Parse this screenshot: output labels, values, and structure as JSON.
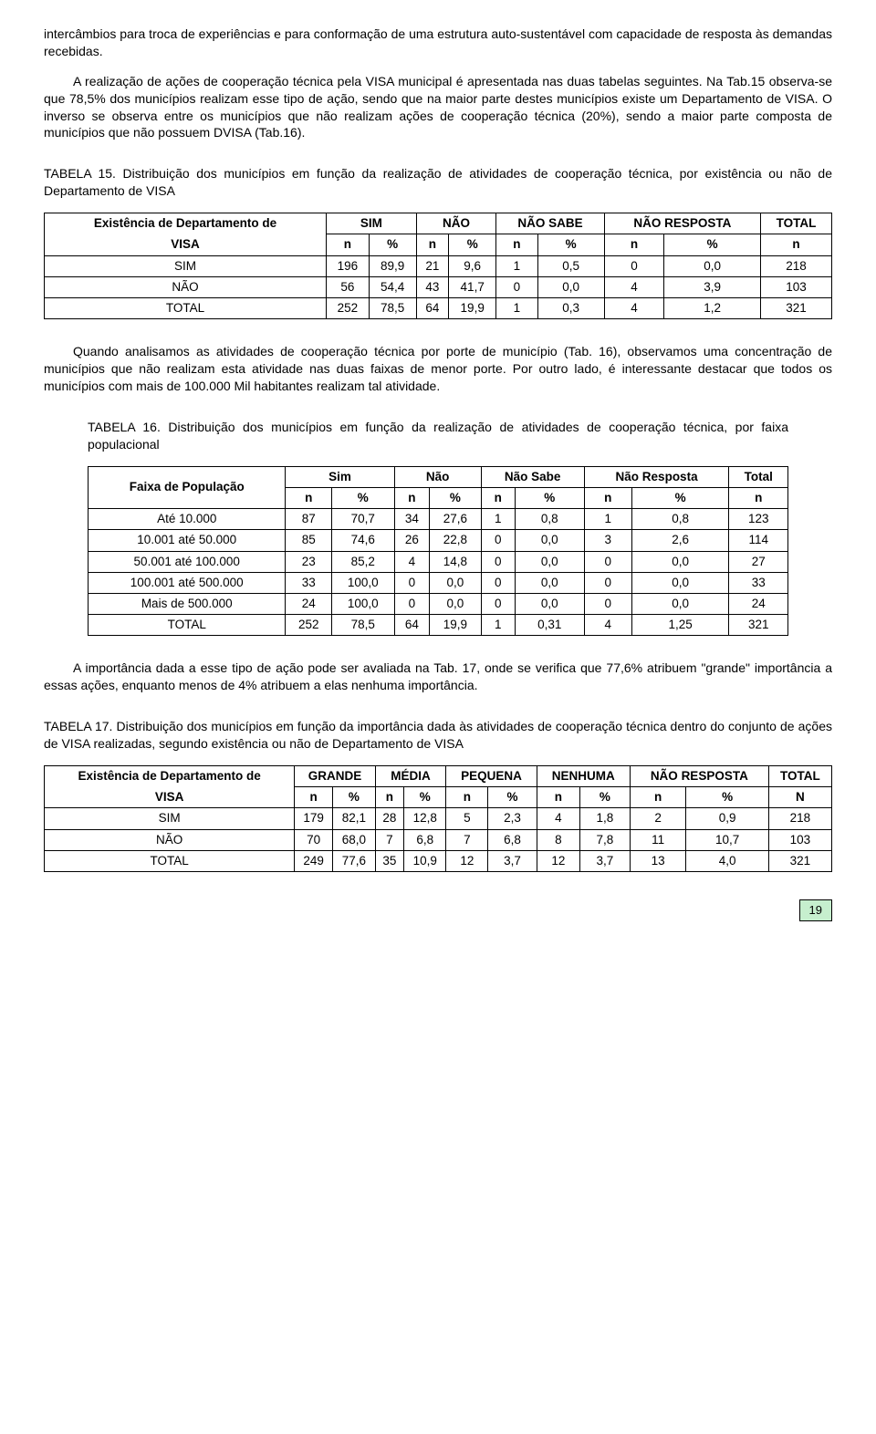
{
  "para1": "intercâmbios para troca de experiências e para conformação de uma estrutura auto-sustentável com capacidade de resposta às demandas recebidas.",
  "para2": "A realização de ações de cooperação técnica pela VISA municipal é apresentada nas duas tabelas seguintes. Na Tab.15 observa-se que 78,5% dos municípios realizam esse tipo de ação, sendo que na maior parte destes municípios existe um Departamento de VISA. O inverso se observa entre os municípios que não realizam ações de cooperação técnica (20%), sendo a maior parte composta de municípios que não possuem DVISA (Tab.16).",
  "tab15": {
    "title": "TABELA 15. Distribuição dos municípios em função da realização de atividades de cooperação técnica, por existência ou não de Departamento de VISA",
    "corner1": "Existência de Departamento de",
    "corner2": "VISA",
    "heads": [
      "SIM",
      "NÃO",
      "NÃO SABE",
      "NÃO RESPOSTA",
      "TOTAL"
    ],
    "sub": [
      "n",
      "%",
      "n",
      "%",
      "n",
      "%",
      "n",
      "%",
      "n"
    ],
    "rows": [
      {
        "label": "SIM",
        "c": [
          "196",
          "89,9",
          "21",
          "9,6",
          "1",
          "0,5",
          "0",
          "0,0",
          "218"
        ]
      },
      {
        "label": "NÃO",
        "c": [
          "56",
          "54,4",
          "43",
          "41,7",
          "0",
          "0,0",
          "4",
          "3,9",
          "103"
        ]
      },
      {
        "label": "TOTAL",
        "c": [
          "252",
          "78,5",
          "64",
          "19,9",
          "1",
          "0,3",
          "4",
          "1,2",
          "321"
        ]
      }
    ]
  },
  "para3": "Quando analisamos as atividades de cooperação técnica por porte de município (Tab. 16), observamos uma concentração de municípios que não realizam esta atividade nas duas faixas de menor porte. Por outro lado, é interessante destacar que todos os municípios com mais de 100.000 Mil habitantes realizam tal atividade.",
  "tab16": {
    "title": "TABELA 16. Distribuição dos municípios em função da realização de atividades de cooperação técnica, por faixa populacional",
    "corner": "Faixa de População",
    "heads": [
      "Sim",
      "Não",
      "Não Sabe",
      "Não Resposta",
      "Total"
    ],
    "sub": [
      "n",
      "%",
      "n",
      "%",
      "n",
      "%",
      "n",
      "%",
      "n"
    ],
    "rows": [
      {
        "label": "Até 10.000",
        "c": [
          "87",
          "70,7",
          "34",
          "27,6",
          "1",
          "0,8",
          "1",
          "0,8",
          "123"
        ]
      },
      {
        "label": "10.001 até 50.000",
        "c": [
          "85",
          "74,6",
          "26",
          "22,8",
          "0",
          "0,0",
          "3",
          "2,6",
          "114"
        ]
      },
      {
        "label": "50.001 até 100.000",
        "c": [
          "23",
          "85,2",
          "4",
          "14,8",
          "0",
          "0,0",
          "0",
          "0,0",
          "27"
        ]
      },
      {
        "label": "100.001 até 500.000",
        "c": [
          "33",
          "100,0",
          "0",
          "0,0",
          "0",
          "0,0",
          "0",
          "0,0",
          "33"
        ]
      },
      {
        "label": "Mais de 500.000",
        "c": [
          "24",
          "100,0",
          "0",
          "0,0",
          "0",
          "0,0",
          "0",
          "0,0",
          "24"
        ]
      },
      {
        "label": "TOTAL",
        "c": [
          "252",
          "78,5",
          "64",
          "19,9",
          "1",
          "0,31",
          "4",
          "1,25",
          "321"
        ]
      }
    ]
  },
  "para4": "A importância dada a esse tipo de ação pode ser avaliada na Tab. 17, onde se verifica que 77,6% atribuem \"grande\" importância a essas ações, enquanto menos de 4% atribuem a elas nenhuma importância.",
  "tab17": {
    "title": "TABELA 17. Distribuição dos municípios em função da importância dada às atividades de cooperação técnica dentro do conjunto de ações de VISA realizadas, segundo existência ou não de Departamento de VISA",
    "corner1": "Existência de Departamento de",
    "corner2": "VISA",
    "heads": [
      "GRANDE",
      "MÉDIA",
      "PEQUENA",
      "NENHUMA",
      "NÃO RESPOSTA",
      "TOTAL"
    ],
    "sub": [
      "n",
      "%",
      "n",
      "%",
      "n",
      "%",
      "n",
      "%",
      "n",
      "%",
      "N"
    ],
    "rows": [
      {
        "label": "SIM",
        "c": [
          "179",
          "82,1",
          "28",
          "12,8",
          "5",
          "2,3",
          "4",
          "1,8",
          "2",
          "0,9",
          "218"
        ]
      },
      {
        "label": "NÃO",
        "c": [
          "70",
          "68,0",
          "7",
          "6,8",
          "7",
          "6,8",
          "8",
          "7,8",
          "11",
          "10,7",
          "103"
        ]
      },
      {
        "label": "TOTAL",
        "c": [
          "249",
          "77,6",
          "35",
          "10,9",
          "12",
          "3,7",
          "12",
          "3,7",
          "13",
          "4,0",
          "321"
        ]
      }
    ]
  },
  "pageNum": "19"
}
